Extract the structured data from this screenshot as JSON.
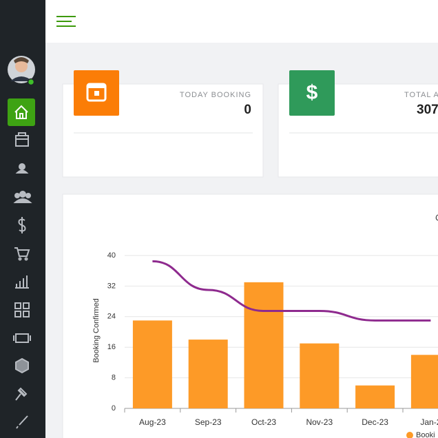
{
  "cards": [
    {
      "label": "TODAY BOOKING",
      "value": "0"
    },
    {
      "label": "TOTAL A",
      "value": "307",
      "icon": "$"
    }
  ],
  "chart_data": {
    "type": "bar",
    "title": "C",
    "ylabel": "Booking Confirmed",
    "categories": [
      "Aug-23",
      "Sep-23",
      "Oct-23",
      "Nov-23",
      "Dec-23",
      "Jan-2"
    ],
    "series": [
      {
        "name": "Booki",
        "color": "#fd9a27",
        "values": [
          23,
          18,
          33,
          17,
          6,
          14
        ]
      },
      {
        "type": "line",
        "color": "#8e2a8e",
        "values": [
          38.5,
          31,
          25.5,
          25.5,
          23,
          23
        ]
      }
    ],
    "ylim": [
      0,
      40
    ],
    "yticks": [
      0,
      8,
      16,
      24,
      32,
      40
    ],
    "grid": true
  }
}
